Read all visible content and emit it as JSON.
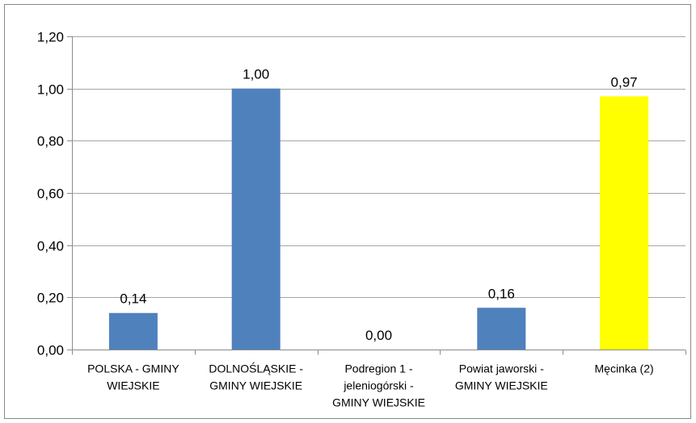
{
  "chart_data": {
    "type": "bar",
    "categories": [
      [
        "POLSKA - GMINY",
        "WIEJSKIE"
      ],
      [
        "DOLNOŚLĄSKIE -",
        "GMINY WIEJSKIE"
      ],
      [
        "Podregion 1 -",
        "jeleniogórski -",
        "GMINY WIEJSKIE"
      ],
      [
        "Powiat jaworski -",
        "GMINY WIEJSKIE"
      ],
      [
        "Męcinka (2)"
      ]
    ],
    "values": [
      0.14,
      1.0,
      0.0,
      0.16,
      0.97
    ],
    "data_labels": [
      "0,14",
      "1,00",
      "0,00",
      "0,16",
      "0,97"
    ],
    "bar_colors": [
      "#4f81bd",
      "#4f81bd",
      "#4f81bd",
      "#4f81bd",
      "#ffff00"
    ],
    "ylim": [
      0,
      1.2
    ],
    "yticks": [
      0,
      0.2,
      0.4,
      0.6,
      0.8,
      1.0,
      1.2
    ],
    "ytick_labels": [
      "0,00",
      "0,20",
      "0,40",
      "0,60",
      "0,80",
      "1,00",
      "1,20"
    ],
    "grid": true,
    "legend": "none",
    "gridline_color": "#a6a6a6",
    "axis_color": "#8c8c8c",
    "title": "",
    "xlabel": "",
    "ylabel": ""
  }
}
